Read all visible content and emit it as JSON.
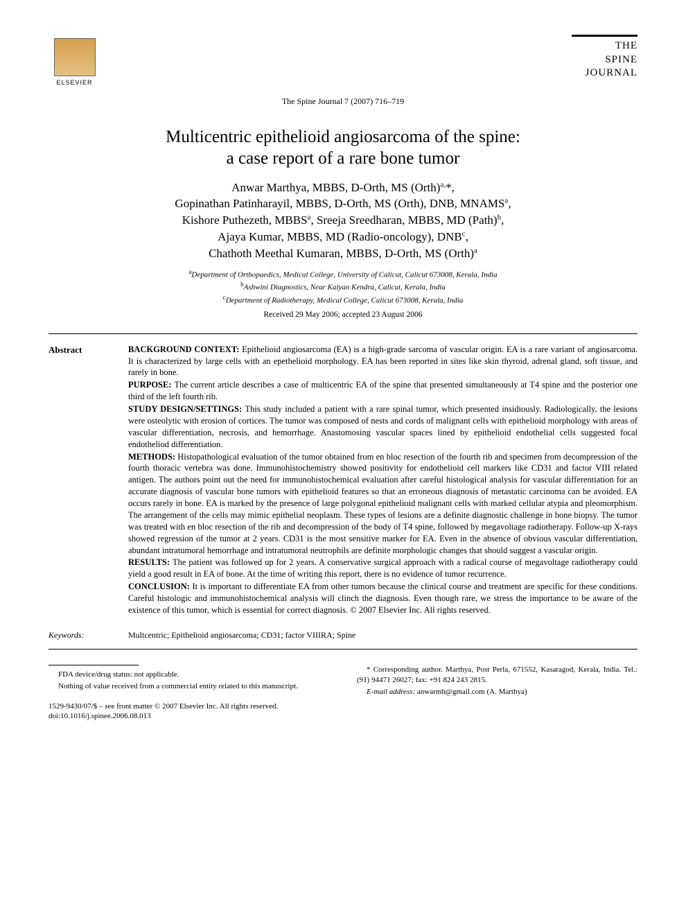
{
  "header": {
    "elsevier_label": "ELSEVIER",
    "journal_logo_lines": [
      "THE",
      "SPINE",
      "JOURNAL"
    ],
    "journal_ref": "The Spine Journal 7 (2007) 716–719"
  },
  "title_lines": [
    "Multicentric epithelioid angiosarcoma of the spine:",
    "a case report of a rare bone tumor"
  ],
  "authors_html": "Anwar Marthya, MBBS, D-Orth, MS (Orth)<sup>a,</sup>*,<br>Gopinathan Patinharayil, MBBS, D-Orth, MS (Orth), DNB, MNAMS<sup>a</sup>,<br>Kishore Puthezeth, MBBS<sup>a</sup>, Sreeja Sreedharan, MBBS, MD (Path)<sup>b</sup>,<br>Ajaya Kumar, MBBS, MD (Radio-oncology), DNB<sup>c</sup>,<br>Chathoth Meethal Kumaran, MBBS, D-Orth, MS (Orth)<sup>a</sup>",
  "affiliations": [
    {
      "sup": "a",
      "text": "Department of Orthopaedics, Medical College, University of Calicut,  Calicut 673008, Kerala, India"
    },
    {
      "sup": "b",
      "text": "Ashwini Diagnostics, Near Kalyan Kendra, Calicut, Kerala, India"
    },
    {
      "sup": "c",
      "text": "Department of Radiotherapy, Medical College, Calicut 673008, Kerala, India"
    }
  ],
  "dates": "Received 29 May 2006; accepted 23 August 2006",
  "abstract": {
    "label": "Abstract",
    "sections": [
      {
        "heading": "BACKGROUND CONTEXT:",
        "text": "Epithelioid angiosarcoma (EA) is a high-grade sarcoma of vascular origin. EA is a rare variant of angiosarcoma. It is characterized by large cells with an epethelioid morphology. EA has been reported in sites like skin thyroid, adrenal gland, soft tissue, and rarely in bone."
      },
      {
        "heading": "PURPOSE:",
        "text": "The current article describes a case of multicentric EA of the spine that presented simultaneously at T4 spine and the posterior one third of the left fourth rib."
      },
      {
        "heading": "STUDY DESIGN/SETTINGS:",
        "text": "This study included a patient with a rare spinal tumor, which presented insidiously. Radiologically, the lesions were osteolytic with erosion of cortices. The tumor was composed of nests and cords of malignant cells with epithelioid morphology with areas of vascular differentiation, necrosis, and hemorrhage. Anastomosing vascular spaces lined by epithelioid endothelial cells suggested focal endotheliod differentiation."
      },
      {
        "heading": "METHODS:",
        "text": "Histopathological evaluation of the tumor obtained from en bloc resection of the fourth rib and specimen from decompression of the fourth thoracic vertebra was done. Immunohistochemistry showed positivity for endothelioid cell markers like CD31 and factor VIII related antigen. The authors point out the need for immunohistochemical evaluation after careful histological analysis for vascular differentiation for an accurate diagnosis of vascular bone tumors with epithelioid features so that an erroneous diagnosis of metastatic carcinoma can be avoided. EA occurs rarely in bone. EA is marked by the presence of large polygonal epithelioid malignant cells with marked cellular atypia and pleomorphism. The arrangement of the cells may mimic epithelial neoplasm. These types of lesions are a definite diagnostic challenge in bone biopsy. The tumor was treated with en bloc resection of the rib and decompression of the body of T4 spine, followed by megavoltage radiotherapy. Follow-up X-rays showed regression of the tumor at 2 years. CD31 is the most sensitive marker for EA. Even in the absence of obvious vascular differentiation, abundant intratumoral hemorrhage and intratumoral neutrophils are definite morphologic changes that should suggest a vascular origin."
      },
      {
        "heading": "RESULTS:",
        "text": "The patient was followed up for 2 years. A conservative surgical approach with a radical course of megavoltage radiotherapy could yield a good result in EA of bone. At the time of writing this report, there is no evidence of tumor recurrence."
      },
      {
        "heading": "CONCLUSION:",
        "text": "It is important to differentiate EA from other tumors because the clinical course and treatment are specific for these conditions. Careful histologic and immunohistochemical analysis will clinch the diagnosis. Even though rare, we stress the importance to be aware of the existence of this tumor, which is essential for correct diagnosis.   © 2007 Elsevier Inc. All rights reserved."
      }
    ]
  },
  "keywords": {
    "label": "Keywords:",
    "text": "Multcentric; Epithelioid angiosarcoma; CD31; factor VIIIRA; Spine"
  },
  "footer": {
    "left": [
      "FDA device/drug status: not applicable.",
      "Nothing of value received from a commercial entity related to this manuscript."
    ],
    "right_corresponding": "* Corresponding author. Marthya, Post Perla, 671552, Kasaragod, Kerala, India. Tel.: (91) 94471 26027; fax: +91 824 243 2815.",
    "email_label": "E-mail address:",
    "email": "anwarmh@gmail.com",
    "email_suffix": "(A. Marthya)",
    "copyright": "1529-9430/07/$ – see front matter © 2007 Elsevier Inc. All rights reserved.",
    "doi": "doi:10.1016/j.spinee.2006.08.013"
  }
}
